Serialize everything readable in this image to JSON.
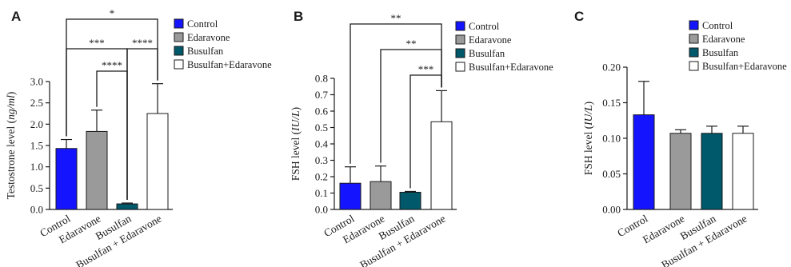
{
  "chart_data": [
    {
      "type": "bar",
      "panel": "A",
      "categories": [
        "Control",
        "Edaravone",
        "Busulfan",
        "Busulfan + Edaravone"
      ],
      "values": [
        1.43,
        1.83,
        0.13,
        2.25
      ],
      "errors": [
        0.21,
        0.5,
        0.02,
        0.7
      ],
      "colors": [
        "#1414ff",
        "#9a9a9a",
        "#00586b",
        "#ffffff"
      ],
      "ylabel_pre": "Testostrone level (",
      "ylabel_unit": "ng/ml",
      "ylabel_post": ")",
      "ylim": [
        0,
        3.0
      ],
      "yticks": [
        "0.0",
        "0.5",
        "1.0",
        "1.5",
        "2.0",
        "2.5",
        "3.0"
      ],
      "legend": [
        "Control",
        "Edaravone",
        "Busulfan",
        "Busulfan+Edaravone"
      ],
      "legend_position": "right",
      "significance": [
        {
          "from": 0,
          "to": 3,
          "label": "*"
        },
        {
          "from": 0,
          "to": 2,
          "label": "***"
        },
        {
          "from": 2,
          "to": 3,
          "label": "****"
        },
        {
          "from": 1,
          "to": 2,
          "label": "****"
        }
      ]
    },
    {
      "type": "bar",
      "panel": "B",
      "categories": [
        "Control",
        "Edaravone",
        "Busulfan",
        "Busulfan + Edaravone"
      ],
      "values": [
        0.16,
        0.17,
        0.105,
        0.535
      ],
      "errors": [
        0.1,
        0.095,
        0.005,
        0.19
      ],
      "colors": [
        "#1414ff",
        "#9a9a9a",
        "#00586b",
        "#ffffff"
      ],
      "ylabel_pre": "FSH level (",
      "ylabel_unit": "IU/L",
      "ylabel_post": ")",
      "ylim": [
        0,
        0.8
      ],
      "yticks": [
        "0.0",
        "0.1",
        "0.2",
        "0.3",
        "0.4",
        "0.5",
        "0.6",
        "0.7",
        "0.8"
      ],
      "legend": [
        "Control",
        "Edaravone",
        "Busulfan",
        "Busulfan+Edaravone"
      ],
      "legend_position": "right",
      "significance": [
        {
          "from": 0,
          "to": 3,
          "label": "**"
        },
        {
          "from": 1,
          "to": 3,
          "label": "**"
        },
        {
          "from": 2,
          "to": 3,
          "label": "***"
        }
      ]
    },
    {
      "type": "bar",
      "panel": "C",
      "categories": [
        "Control",
        "Edaravone",
        "Busulfan",
        "Busulfan + Edaravone"
      ],
      "values": [
        0.133,
        0.107,
        0.107,
        0.107
      ],
      "errors": [
        0.047,
        0.005,
        0.01,
        0.01
      ],
      "colors": [
        "#1414ff",
        "#9a9a9a",
        "#00586b",
        "#ffffff"
      ],
      "ylabel_pre": "FSH level (",
      "ylabel_unit": "IU/L",
      "ylabel_post": ")",
      "ylim": [
        0,
        0.2
      ],
      "yticks": [
        "0.00",
        "0.05",
        "0.10",
        "0.15",
        "0.20"
      ],
      "legend": [
        "Control",
        "Edaravone",
        "Busulfan",
        "Busulfan+Edaravone"
      ],
      "legend_position": "right",
      "significance": []
    }
  ]
}
